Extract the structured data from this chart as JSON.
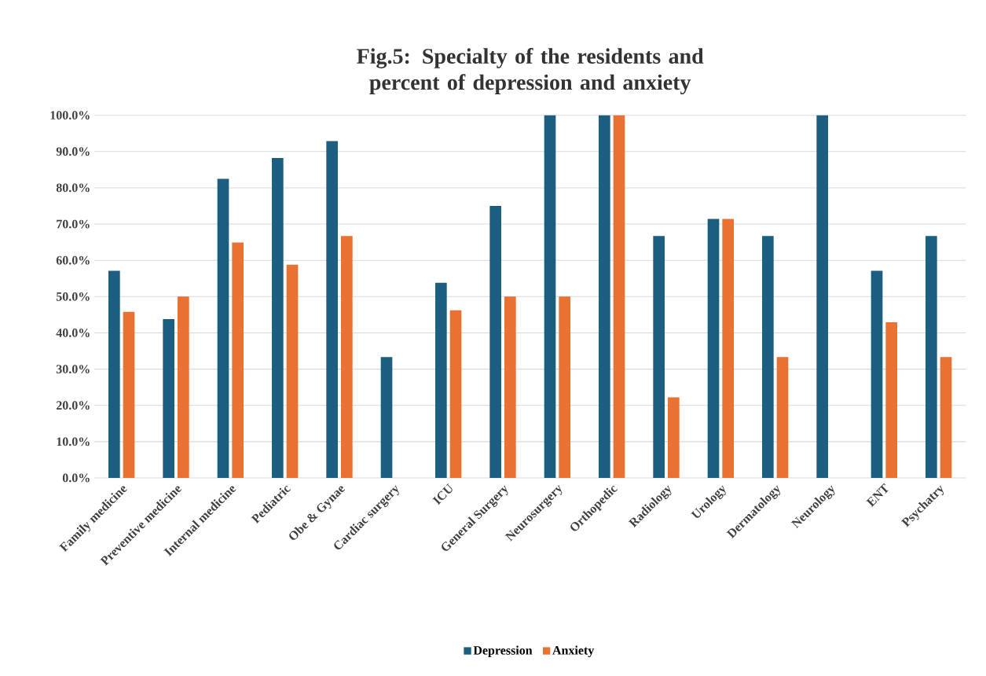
{
  "chart_data": {
    "type": "bar",
    "title": "Fig.5: Specialty of the residents and percent of depression and anxiety",
    "categories": [
      "Family medicine",
      "Preventive medicine",
      "Internal medicine",
      "Pediatric",
      "Obe & Gynae",
      "Cardiac surgery",
      "ICU",
      "General Surgery",
      "Neurosurgery",
      "Orthopedic",
      "Radiology",
      "Urology",
      "Dermatology",
      "Neurology",
      "ENT",
      "Psychatry"
    ],
    "series": [
      {
        "name": "Depression",
        "color": "#1b5e80",
        "values": [
          57.1,
          43.8,
          82.5,
          88.2,
          92.9,
          33.3,
          53.8,
          75.0,
          100.0,
          100.0,
          66.7,
          71.4,
          66.7,
          100.0,
          57.1,
          66.7
        ]
      },
      {
        "name": "Anxiety",
        "color": "#e97132",
        "values": [
          45.8,
          50.0,
          64.9,
          58.8,
          66.7,
          0,
          46.2,
          50.0,
          50.0,
          100.0,
          22.2,
          71.4,
          33.3,
          0,
          42.9,
          33.3
        ]
      }
    ],
    "ylim": [
      0,
      100
    ],
    "yticks": [
      {
        "value": 0,
        "label": "0.0%"
      },
      {
        "value": 10,
        "label": "10.0%"
      },
      {
        "value": 20,
        "label": "20.0%"
      },
      {
        "value": 30,
        "label": "30.0%"
      },
      {
        "value": 40,
        "label": "40.0%"
      },
      {
        "value": 50,
        "label": "50.0%"
      },
      {
        "value": 60,
        "label": "60.0%"
      },
      {
        "value": 70,
        "label": "70.0%"
      },
      {
        "value": 80,
        "label": "80.0%"
      },
      {
        "value": 90,
        "label": "90.0%"
      },
      {
        "value": 100,
        "label": "100.0%"
      }
    ],
    "grid": "y",
    "legend": "bottom"
  }
}
